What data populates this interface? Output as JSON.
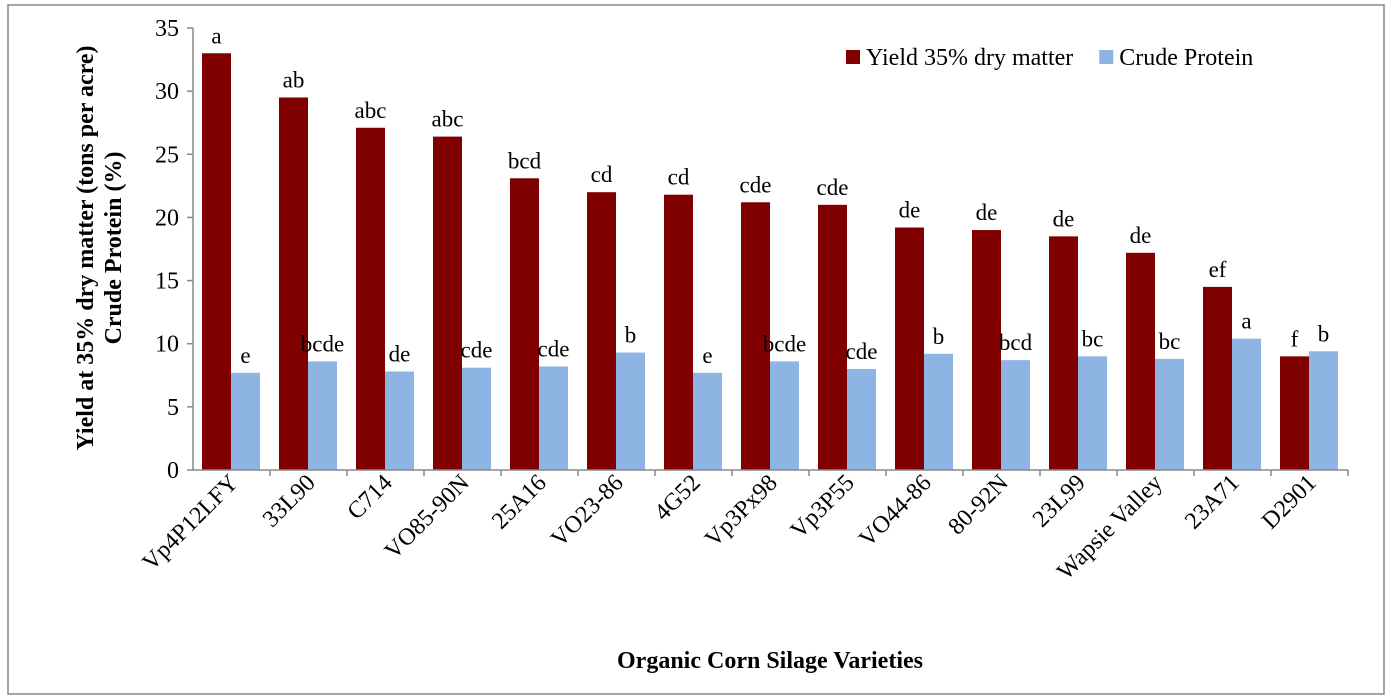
{
  "chart_data": {
    "type": "bar",
    "x_label": "Organic Corn Silage Varieties",
    "y_label": [
      "Yield at 35% dry matter (tons per acre)",
      "Crude Protein (%)"
    ],
    "categories": [
      "Vp4P12LFY",
      "33L90",
      "C714",
      "VO85-90N",
      "25A16",
      "VO23-86",
      "4G52",
      "Vp3Px98",
      "Vp3P55",
      "VO44-86",
      "80-92N",
      "23L99",
      "Wapsie Valley",
      "23A71",
      "D2901"
    ],
    "series": [
      {
        "name": "Yield 35% dry matter",
        "color": "#800000",
        "values": [
          33,
          29.5,
          27.1,
          26.4,
          23.1,
          22,
          21.8,
          21.2,
          21,
          19.2,
          19,
          18.5,
          17.2,
          14.5,
          9
        ],
        "letters": [
          "a",
          "ab",
          "abc",
          "abc",
          "bcd",
          "cd",
          "cd",
          "cde",
          "cde",
          "de",
          "de",
          "de",
          "de",
          "ef",
          "f"
        ]
      },
      {
        "name": "Crude Protein",
        "color": "#8db4e2",
        "values": [
          7.7,
          8.6,
          7.8,
          8.1,
          8.2,
          9.3,
          7.7,
          8.6,
          8.0,
          9.2,
          8.7,
          9.0,
          8.8,
          10.4,
          9.4
        ],
        "letters": [
          "e",
          "bcde",
          "de",
          "cde",
          "cde",
          "b",
          "e",
          "bcde",
          "cde",
          "b",
          "bcd",
          "bc",
          "bc",
          "a",
          "b"
        ]
      }
    ],
    "ylim": [
      0,
      35
    ],
    "yticks": [
      0,
      5,
      10,
      15,
      20,
      25,
      30,
      35
    ],
    "legend": "top-right"
  }
}
